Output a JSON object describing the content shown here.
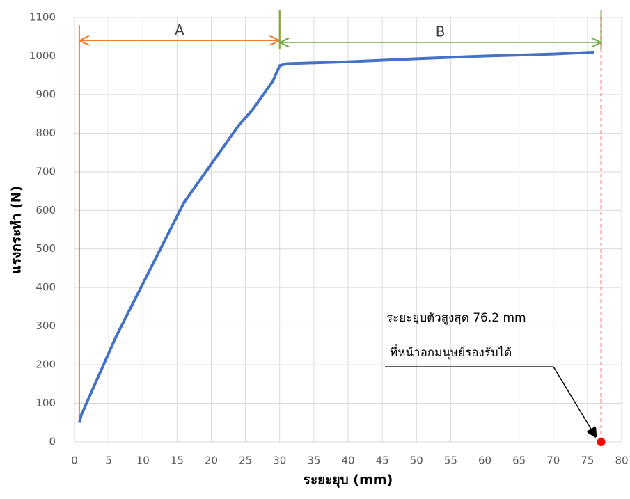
{
  "chart_data": {
    "type": "line",
    "x_label": "ระยะยุบ (mm)",
    "y_label": "แรงกระทำ (N)",
    "series": [
      {
        "color": "#4472c4",
        "x": [
          0.7,
          1,
          2,
          3,
          5,
          6,
          8,
          10,
          12,
          14,
          16,
          18,
          20,
          22,
          24,
          26,
          28,
          29,
          29.5,
          30,
          31,
          40,
          50,
          60,
          70,
          76
        ],
        "values": [
          50,
          70,
          110,
          150,
          230,
          270,
          340,
          410,
          480,
          550,
          620,
          670,
          720,
          770,
          820,
          860,
          910,
          935,
          955,
          975,
          980,
          985,
          993,
          1000,
          1005,
          1010
        ]
      }
    ],
    "xlim": [
      0,
      80
    ],
    "xticks": [
      0,
      5,
      10,
      15,
      20,
      25,
      30,
      35,
      40,
      45,
      50,
      55,
      60,
      65,
      70,
      75,
      80
    ],
    "ylim": [
      0,
      1100
    ],
    "yticks": [
      0,
      100,
      200,
      300,
      400,
      500,
      600,
      700,
      800,
      900,
      1000,
      1100
    ],
    "grid": true,
    "regions": [
      {
        "label": "A",
        "start": 0.7,
        "end": 30,
        "color": "#ed7d31"
      },
      {
        "label": "B",
        "start": 30,
        "end": 77,
        "color": "#70ad47"
      }
    ],
    "marker": {
      "x": 77,
      "y": 0,
      "color": "#ff0000"
    },
    "annotation": [
      "ระยะยุบตัวสูงสุด 76.2 mm",
      "ที่หน้าอกมนุษย์รองรับได้"
    ]
  }
}
